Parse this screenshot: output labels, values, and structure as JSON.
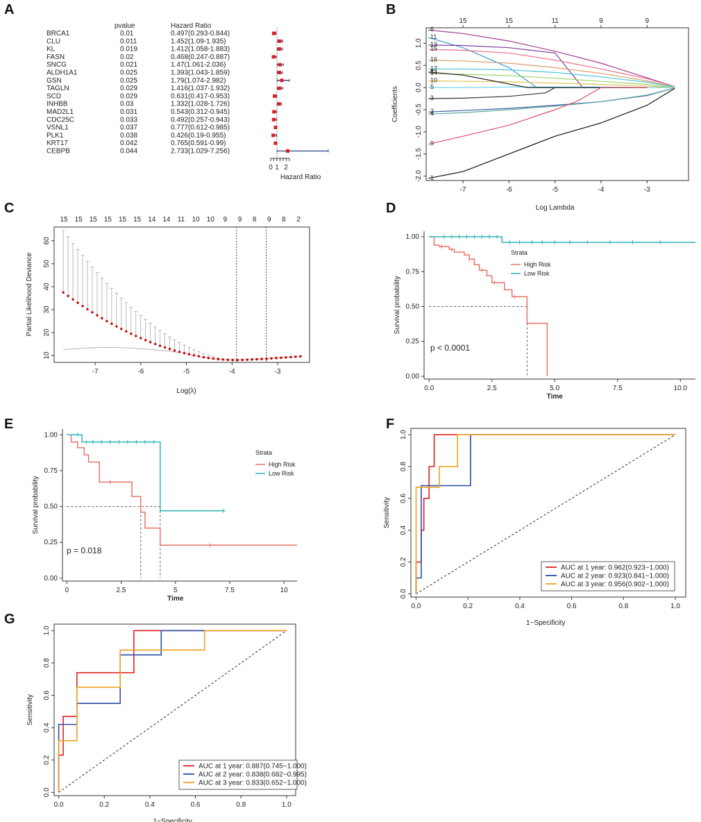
{
  "panels": [
    "A",
    "B",
    "C",
    "D",
    "E",
    "F",
    "G"
  ],
  "chart_data": [
    {
      "panel": "A",
      "type": "forest",
      "col_pvalue": "pvalue",
      "col_hr": "Hazard Ratio",
      "xlabel": "Hazard Ratio",
      "xticks": [
        0,
        1,
        2
      ],
      "genes": [
        "BRCA1",
        "CLU",
        "KL",
        "FASN",
        "SNCG",
        "ALDH1A1",
        "GSN",
        "TAGLN",
        "SCD",
        "INHBB",
        "MAD2L1",
        "CDC25C",
        "VSNL1",
        "PLK1",
        "KRT17",
        "CEBPB"
      ],
      "pvalues": [
        "0.01",
        "0.011",
        "0.019",
        "0.02",
        "0.021",
        "0.025",
        "0.025",
        "0.029",
        "0.029",
        "0.03",
        "0.031",
        "0.033",
        "0.037",
        "0.038",
        "0.042",
        "0.044"
      ],
      "hr_text": [
        "0.497(0.293-0.844)",
        "1.452(1.09-1.935)",
        "1.412(1.058-1.883)",
        "0.468(0.247-0.887)",
        "1.47(1.061-2.036)",
        "1.393(1.043-1.859)",
        "1.79(1.074-2.982)",
        "1.416(1.037-1.932)",
        "0.631(0.417-0.953)",
        "1.332(1.028-1.726)",
        "0.543(0.312-0.945)",
        "0.492(0.257-0.943)",
        "0.777(0.612-0.985)",
        "0.426(0.19-0.955)",
        "0.765(0.591-0.99)",
        "2.733(1.029-7.256)"
      ],
      "hr": [
        0.497,
        1.452,
        1.412,
        0.468,
        1.47,
        1.393,
        1.79,
        1.416,
        0.631,
        1.332,
        0.543,
        0.492,
        0.777,
        0.426,
        0.765,
        2.733
      ],
      "lo": [
        0.293,
        1.09,
        1.058,
        0.247,
        1.061,
        1.043,
        1.074,
        1.037,
        0.417,
        1.028,
        0.312,
        0.257,
        0.612,
        0.19,
        0.591,
        1.029
      ],
      "hi": [
        0.844,
        1.935,
        1.883,
        0.887,
        2.036,
        1.859,
        2.982,
        1.932,
        0.953,
        1.726,
        0.945,
        0.943,
        0.985,
        0.955,
        0.99,
        7.256
      ]
    },
    {
      "panel": "B",
      "type": "line",
      "title": "",
      "xlabel": "Log Lambda",
      "ylabel": "Coefficients",
      "xlim": [
        -7.8,
        -2.1
      ],
      "ylim": [
        -2.1,
        1.35
      ],
      "xticks": [
        -7,
        -6,
        -5,
        -4,
        -3
      ],
      "yticks": [
        -2.0,
        -1.5,
        -1.0,
        -0.5,
        0.0,
        0.5,
        1.0
      ],
      "top_ticks_x": [
        -7,
        -6,
        -5,
        -4,
        -3
      ],
      "top_ticks_labels": [
        "15",
        "15",
        "11",
        "9",
        "9"
      ],
      "series": [
        {
          "name": "6",
          "color": "#a03c90",
          "x": [
            -7.75,
            -7,
            -6,
            -5,
            -4,
            -3,
            -2.4
          ],
          "y": [
            1.3,
            1.22,
            1.05,
            0.82,
            0.55,
            0.22,
            0.02
          ]
        },
        {
          "name": "11",
          "color": "#3a9ad9",
          "x": [
            -7.75,
            -7,
            -6,
            -5.4,
            -5,
            -4,
            -3
          ],
          "y": [
            1.13,
            0.9,
            0.45,
            0.0,
            0.0,
            0.0,
            0.0
          ]
        },
        {
          "name": "13",
          "color": "#7b3f98",
          "x": [
            -7.75,
            -7,
            -6,
            -5,
            -4.4,
            -4,
            -3
          ],
          "y": [
            0.96,
            0.95,
            0.9,
            0.78,
            0.0,
            0.0,
            0.0
          ]
        },
        {
          "name": "15",
          "color": "#e8708e",
          "x": [
            -7.75,
            -7,
            -6,
            -5,
            -4,
            -3,
            -2.4
          ],
          "y": [
            0.86,
            0.84,
            0.78,
            0.62,
            0.42,
            0.2,
            0.02
          ]
        },
        {
          "name": "16",
          "color": "#d9a06a",
          "x": [
            -7.75,
            -7,
            -6,
            -5,
            -4,
            -3,
            -2.4
          ],
          "y": [
            0.62,
            0.6,
            0.55,
            0.45,
            0.32,
            0.15,
            0.01
          ]
        },
        {
          "name": "12",
          "color": "#4fc3d6",
          "x": [
            -7.75,
            -7,
            -6,
            -5,
            -4,
            -3,
            -2.4
          ],
          "y": [
            0.42,
            0.42,
            0.4,
            0.34,
            0.24,
            0.12,
            0.01
          ]
        },
        {
          "name": "14",
          "color": "#9cd46a",
          "x": [
            -7.75,
            -7,
            -6,
            -5,
            -4,
            -3,
            -2.4
          ],
          "y": [
            0.32,
            0.3,
            0.27,
            0.21,
            0.14,
            0.07,
            0.0
          ]
        },
        {
          "name": "10",
          "color": "#e6c24a",
          "x": [
            -7.75,
            -7,
            -6,
            -5,
            -4,
            -3,
            -2.4
          ],
          "y": [
            0.15,
            0.14,
            0.13,
            0.1,
            0.07,
            0.03,
            0.0
          ]
        },
        {
          "name": "5",
          "color": "#76d6f2",
          "x": [
            -7.75,
            -7,
            -6,
            -5,
            -4,
            -3,
            -2.4
          ],
          "y": [
            0.0,
            0.0,
            0.01,
            0.01,
            0.01,
            0.0,
            0.0
          ]
        },
        {
          "name": "8",
          "color": "#222222",
          "x": [
            -7.75,
            -7,
            -6.2,
            -5.6,
            -5,
            -4,
            -3
          ],
          "y": [
            0.35,
            0.28,
            0.12,
            0.0,
            0.0,
            0.0,
            0.0
          ]
        },
        {
          "name": "3",
          "color": "#333333",
          "x": [
            -7.75,
            -7,
            -6,
            -5.2,
            -5,
            -4,
            -3
          ],
          "y": [
            -0.25,
            -0.24,
            -0.2,
            -0.12,
            0.0,
            0.0,
            0.0
          ]
        },
        {
          "name": "2",
          "color": "#3c5ca8",
          "x": [
            -7.75,
            -7,
            -6,
            -5,
            -4,
            -3,
            -2.4
          ],
          "y": [
            -0.55,
            -0.52,
            -0.47,
            -0.4,
            -0.32,
            -0.18,
            -0.01
          ]
        },
        {
          "name": "4",
          "color": "#5fa9a0",
          "x": [
            -7.75,
            -7,
            -6,
            -5,
            -4,
            -3,
            -2.4
          ],
          "y": [
            -0.6,
            -0.57,
            -0.5,
            -0.42,
            -0.32,
            -0.17,
            -0.01
          ]
        },
        {
          "name": "9",
          "color": "#e0506a",
          "x": [
            -7.75,
            -7,
            -6,
            -5,
            -4.5,
            -4,
            -3
          ],
          "y": [
            -1.28,
            -1.1,
            -0.85,
            -0.5,
            -0.3,
            0.0,
            0.0
          ]
        },
        {
          "name": "1",
          "color": "#111111",
          "x": [
            -7.75,
            -7,
            -6,
            -5,
            -4,
            -3,
            -2.4
          ],
          "y": [
            -2.05,
            -1.9,
            -1.5,
            -1.1,
            -0.8,
            -0.4,
            -0.02
          ]
        }
      ]
    },
    {
      "panel": "C",
      "type": "scatter",
      "xlabel": "Log(λ)",
      "ylabel": "Partial Likelihood Deviance",
      "xlim": [
        -7.9,
        -2.3
      ],
      "ylim": [
        7,
        66
      ],
      "xticks": [
        -7,
        -6,
        -5,
        -4,
        -3
      ],
      "yticks": [
        10,
        20,
        30,
        40,
        50,
        60
      ],
      "top_labels": [
        "15",
        "15",
        "15",
        "15",
        "15",
        "15",
        "14",
        "14",
        "11",
        "10",
        "10",
        "9",
        "9",
        "8",
        "9",
        "8",
        "2"
      ],
      "vlines": [
        -3.9,
        -3.25
      ],
      "color": "#cc0000"
    },
    {
      "panel": "D",
      "type": "line",
      "xlabel": "Time",
      "ylabel": "Survival probability",
      "xlim": [
        -0.2,
        10.6
      ],
      "ylim": [
        -0.02,
        1.04
      ],
      "xticks": [
        0.0,
        2.5,
        5.0,
        7.5,
        10.0
      ],
      "xticklabels": [
        "0.0",
        "2.5",
        "5.0",
        "7.5",
        "10.0"
      ],
      "yticks": [
        0.0,
        0.25,
        0.5,
        0.75,
        1.0
      ],
      "yticklabels": [
        "0.00",
        "0.25",
        "0.50",
        "0.75",
        "1.00"
      ],
      "annotation": "p < 0.0001",
      "legend_title": "Strata",
      "series": [
        {
          "name": "High Risk",
          "color": "#e8726a",
          "x": [
            0,
            0.2,
            0.4,
            0.8,
            1.0,
            1.4,
            1.6,
            1.8,
            2.0,
            2.3,
            2.5,
            3.0,
            3.3,
            3.9,
            4.7,
            4.7
          ],
          "y": [
            1.0,
            0.94,
            0.93,
            0.91,
            0.89,
            0.87,
            0.84,
            0.8,
            0.76,
            0.72,
            0.67,
            0.62,
            0.57,
            0.38,
            0.38,
            0.0
          ]
        },
        {
          "name": "Low Risk",
          "color": "#2bb6b6",
          "x": [
            0,
            2.9,
            10.6
          ],
          "y": [
            1.0,
            0.96,
            0.96
          ]
        }
      ]
    },
    {
      "panel": "E",
      "type": "line",
      "xlabel": "Time",
      "ylabel": "Survival probability",
      "xlim": [
        -0.2,
        10.6
      ],
      "ylim": [
        -0.02,
        1.04
      ],
      "xticks": [
        0,
        2.5,
        5,
        7.5,
        10
      ],
      "xticklabels": [
        "0",
        "2.5",
        "5",
        "7.5",
        "10"
      ],
      "yticks": [
        0.0,
        0.25,
        0.5,
        0.75,
        1.0
      ],
      "yticklabels": [
        "0.00",
        "0.25",
        "0.50",
        "0.75",
        "1.00"
      ],
      "annotation": "p = 0.018",
      "legend_title": "Strata",
      "series": [
        {
          "name": "High Risk",
          "color": "#e8726a",
          "x": [
            0,
            0.2,
            0.5,
            0.8,
            1.0,
            1.5,
            2.2,
            3.0,
            3.4,
            3.6,
            4.3,
            10.6
          ],
          "y": [
            1.0,
            0.95,
            0.91,
            0.86,
            0.81,
            0.67,
            0.67,
            0.57,
            0.46,
            0.35,
            0.23,
            0.23
          ]
        },
        {
          "name": "Low Risk",
          "color": "#2bb6b6",
          "x": [
            0,
            0.7,
            4.3,
            4.3,
            7.3
          ],
          "y": [
            1.0,
            0.95,
            0.95,
            0.47,
            0.47
          ]
        }
      ]
    },
    {
      "panel": "F",
      "type": "line",
      "xlabel": "1−Specificity",
      "ylabel": "Sensitivity",
      "xlim": [
        -0.02,
        1.04
      ],
      "ylim": [
        -0.02,
        1.04
      ],
      "xticks": [
        0.0,
        0.2,
        0.4,
        0.6,
        0.8,
        1.0
      ],
      "yticks": [
        0.0,
        0.2,
        0.4,
        0.6,
        0.8,
        1.0
      ],
      "series": [
        {
          "name": "AUC at 1 year: 0.962(0.923−1.000)",
          "color": "#e02020",
          "x": [
            0,
            0,
            0.02,
            0.02,
            0.03,
            0.03,
            0.05,
            0.05,
            0.07,
            0.07,
            1.0
          ],
          "y": [
            0,
            0.2,
            0.2,
            0.4,
            0.4,
            0.6,
            0.6,
            0.8,
            0.8,
            1.0,
            1.0
          ]
        },
        {
          "name": "AUC at 2 year: 0.923(0.841−1.000)",
          "color": "#2a4aa8",
          "x": [
            0,
            0,
            0.02,
            0.02,
            0.21,
            0.21,
            1.0
          ],
          "y": [
            0,
            0.1,
            0.1,
            0.68,
            0.68,
            1.0,
            1.0
          ]
        },
        {
          "name": "AUC at 3 year: 0.956(0.902−1.000)",
          "color": "#f0a020",
          "x": [
            0,
            0,
            0.05,
            0.05,
            0.09,
            0.09,
            0.16,
            0.16,
            1.0
          ],
          "y": [
            0,
            0.67,
            0.67,
            0.67,
            0.67,
            0.8,
            0.8,
            1.0,
            1.0
          ]
        }
      ]
    },
    {
      "panel": "G",
      "type": "line",
      "xlabel": "1−Specificity",
      "ylabel": "Sensitivity",
      "xlim": [
        -0.02,
        1.04
      ],
      "ylim": [
        -0.02,
        1.04
      ],
      "xticks": [
        0.0,
        0.2,
        0.4,
        0.6,
        0.8,
        1.0
      ],
      "yticks": [
        0.0,
        0.2,
        0.4,
        0.6,
        0.8,
        1.0
      ],
      "series": [
        {
          "name": "AUC at 1 year: 0.887(0.745−1.000)",
          "color": "#e02020",
          "x": [
            0,
            0,
            0.02,
            0.02,
            0.05,
            0.05,
            0.08,
            0.08,
            0.27,
            0.27,
            0.33,
            0.33,
            1.0
          ],
          "y": [
            0,
            0.23,
            0.23,
            0.47,
            0.47,
            0.47,
            0.47,
            0.74,
            0.74,
            0.74,
            0.74,
            1.0,
            1.0
          ]
        },
        {
          "name": "AUC at 2 year: 0.838(0.682−0.995)",
          "color": "#2a4aa8",
          "x": [
            0,
            0,
            0.08,
            0.08,
            0.27,
            0.27,
            0.45,
            0.45,
            1.0
          ],
          "y": [
            0,
            0.42,
            0.42,
            0.55,
            0.55,
            0.85,
            0.85,
            1.0,
            1.0
          ]
        },
        {
          "name": "AUC at 3 year: 0.833(0.652−1.000)",
          "color": "#f0a020",
          "x": [
            0,
            0,
            0.08,
            0.08,
            0.27,
            0.27,
            0.64,
            0.64,
            1.0
          ],
          "y": [
            0,
            0.32,
            0.32,
            0.65,
            0.65,
            0.88,
            0.88,
            1.0,
            1.0
          ]
        }
      ]
    }
  ]
}
